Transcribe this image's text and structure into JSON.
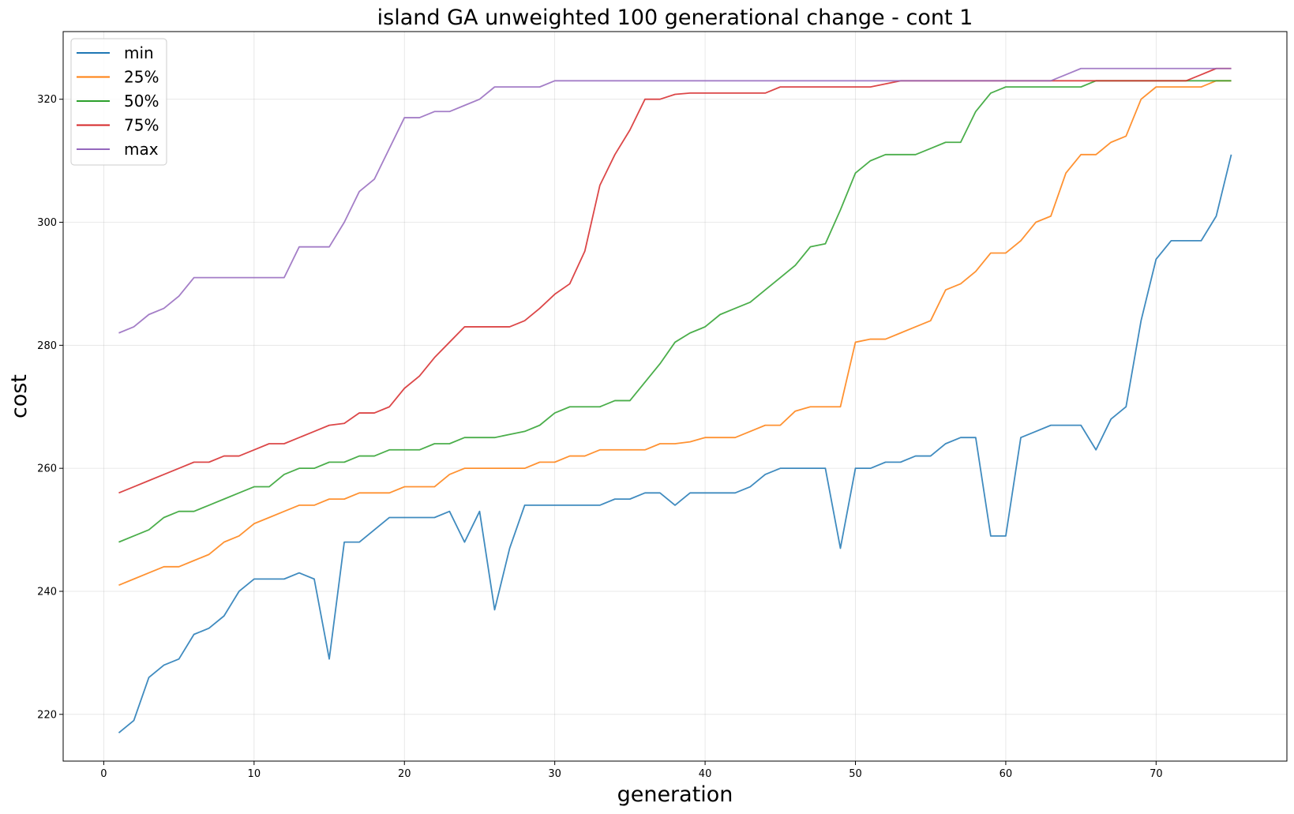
{
  "chart_data": {
    "type": "line",
    "title": "island GA unweighted 100 generational change - cont 1",
    "xlabel": "generation",
    "ylabel": "cost",
    "xlim": [
      -2.7,
      78.7
    ],
    "ylim": [
      212.4,
      331.0
    ],
    "xticks": [
      0,
      10,
      20,
      30,
      40,
      50,
      60,
      70
    ],
    "yticks": [
      220,
      240,
      260,
      280,
      300,
      320
    ],
    "grid": true,
    "legend_position": "top-left",
    "x": [
      1,
      2,
      3,
      4,
      5,
      6,
      7,
      8,
      9,
      10,
      11,
      12,
      13,
      14,
      15,
      16,
      17,
      18,
      19,
      20,
      21,
      22,
      23,
      24,
      25,
      26,
      27,
      28,
      29,
      30,
      31,
      32,
      33,
      34,
      35,
      36,
      37,
      38,
      39,
      40,
      41,
      42,
      43,
      44,
      45,
      46,
      47,
      48,
      49,
      50,
      51,
      52,
      53,
      54,
      55,
      56,
      57,
      58,
      59,
      60,
      61,
      62,
      63,
      64,
      65,
      66,
      67,
      68,
      69,
      70,
      71,
      72,
      73,
      74,
      75
    ],
    "series": [
      {
        "name": "min",
        "color": "#1f77b4",
        "values": [
          217,
          219,
          226,
          228,
          229,
          233,
          234,
          236,
          240,
          242,
          242,
          242,
          243,
          242,
          229,
          248,
          248,
          250,
          252,
          252,
          252,
          252,
          253,
          248,
          253,
          237,
          247,
          254,
          254,
          254,
          254,
          254,
          254,
          255,
          255,
          256,
          256,
          254,
          256,
          256,
          256,
          256,
          257,
          259,
          260,
          260,
          260,
          260,
          247,
          260,
          260,
          261,
          261,
          262,
          262,
          264,
          265,
          265,
          249,
          249,
          265,
          266,
          267,
          267,
          267,
          263,
          268,
          270,
          284,
          294,
          297,
          297,
          297,
          301,
          311
        ]
      },
      {
        "name": "25%",
        "color": "#ff7f0e",
        "values": [
          241,
          242,
          243,
          244,
          244,
          245,
          246,
          248,
          249,
          251,
          252,
          253,
          254,
          254,
          255,
          255,
          256,
          256,
          256,
          257,
          257,
          257,
          259,
          260,
          260,
          260,
          260,
          260,
          261,
          261,
          262,
          262,
          263,
          263,
          263,
          263,
          264,
          264,
          264.3,
          265,
          265,
          265,
          266,
          267,
          267,
          269.3,
          270,
          270,
          270,
          280.5,
          281,
          281,
          282,
          283,
          284,
          289,
          290,
          292,
          295,
          295,
          297,
          300,
          301,
          308,
          311,
          311,
          313,
          314,
          320,
          322,
          322,
          322,
          322,
          323,
          323
        ]
      },
      {
        "name": "50%",
        "color": "#2ca02c",
        "values": [
          248,
          249,
          250,
          252,
          253,
          253,
          254,
          255,
          256,
          257,
          257,
          259,
          260,
          260,
          261,
          261,
          262,
          262,
          263,
          263,
          263,
          264,
          264,
          265,
          265,
          265,
          265.5,
          266,
          267,
          269,
          270,
          270,
          270,
          271,
          271,
          274,
          277,
          280.5,
          282,
          283,
          285,
          286,
          287,
          289,
          291,
          293,
          296,
          296.5,
          302,
          308,
          310,
          311,
          311,
          311,
          312,
          313,
          313,
          318,
          321,
          322,
          322,
          322,
          322,
          322,
          322,
          323,
          323,
          323,
          323,
          323,
          323,
          323,
          323,
          323,
          323
        ]
      },
      {
        "name": "75%",
        "color": "#d62728",
        "values": [
          256,
          257,
          258,
          259,
          260,
          261,
          261,
          262,
          262,
          263,
          264,
          264,
          265,
          266,
          267,
          267.3,
          269,
          269,
          270,
          273,
          275,
          278,
          280.5,
          283,
          283,
          283,
          283,
          284,
          286,
          288.3,
          290,
          295.3,
          306,
          311,
          315,
          320,
          320,
          320.8,
          321,
          321,
          321,
          321,
          321,
          321,
          322,
          322,
          322,
          322,
          322,
          322,
          322,
          322.5,
          323,
          323,
          323,
          323,
          323,
          323,
          323,
          323,
          323,
          323,
          323,
          323,
          323,
          323,
          323,
          323,
          323,
          323,
          323,
          323,
          324,
          325,
          325
        ]
      },
      {
        "name": "max",
        "color": "#9467bd",
        "values": [
          282,
          283,
          285,
          286,
          288,
          291,
          291,
          291,
          291,
          291,
          291,
          291,
          296,
          296,
          296,
          300,
          305,
          307,
          312,
          317,
          317,
          318,
          318,
          319,
          320,
          322,
          322,
          322,
          322,
          323,
          323,
          323,
          323,
          323,
          323,
          323,
          323,
          323,
          323,
          323,
          323,
          323,
          323,
          323,
          323,
          323,
          323,
          323,
          323,
          323,
          323,
          323,
          323,
          323,
          323,
          323,
          323,
          323,
          323,
          323,
          323,
          323,
          323,
          324,
          325,
          325,
          325,
          325,
          325,
          325,
          325,
          325,
          325,
          325,
          325
        ]
      }
    ]
  }
}
